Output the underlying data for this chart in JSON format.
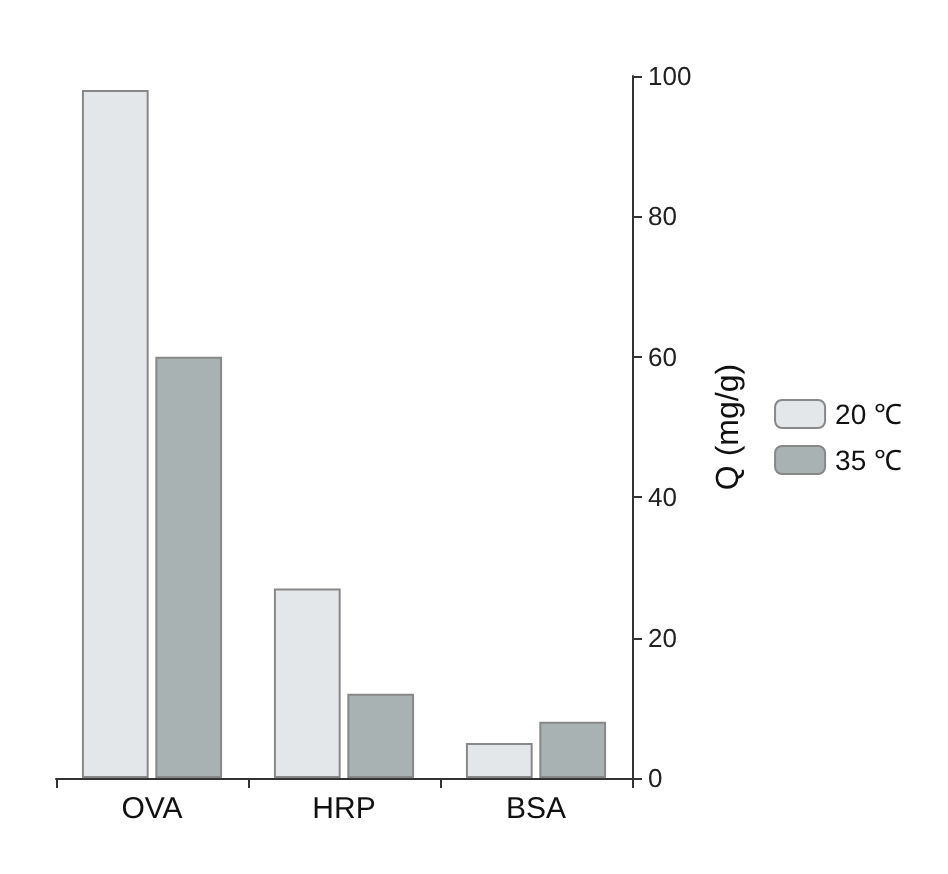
{
  "chart_data": {
    "type": "bar",
    "ylabel": "Q (mg/g)",
    "categories": [
      "OVA",
      "HRP",
      "BSA"
    ],
    "series": [
      {
        "name": "20 ℃",
        "color": "#e4e7ea",
        "values": [
          98,
          27,
          5
        ]
      },
      {
        "name": "35 ℃",
        "color": "#a9b2b2",
        "values": [
          60,
          12,
          8
        ]
      }
    ],
    "ylim": [
      0,
      100
    ],
    "yticks": [
      0,
      20,
      40,
      60,
      80,
      100
    ],
    "grid": false,
    "legend": "right"
  }
}
